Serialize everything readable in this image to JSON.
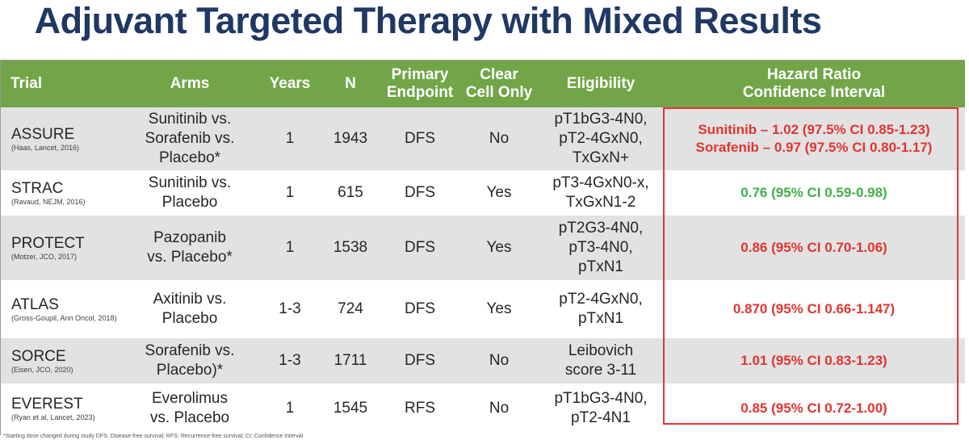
{
  "title": "Adjuvant Targeted Therapy with Mixed Results",
  "headers": {
    "trial": "Trial",
    "arms": "Arms",
    "years": "Years",
    "n": "N",
    "endpoint_1": "Primary",
    "endpoint_2": "Endpoint",
    "clear_1": "Clear",
    "clear_2": "Cell Only",
    "eligibility": "Eligibility",
    "hr_1": "Hazard Ratio",
    "hr_2": "Confidence Interval"
  },
  "rows": [
    {
      "trial": "ASSURE",
      "ref": "(Haas, Lancet, 2016)",
      "arms": [
        "Sunitinib vs.",
        "Sorafenib vs.",
        "Placebo*"
      ],
      "years": "1",
      "n": "1943",
      "endpoint": "DFS",
      "clear_cell": "No",
      "eligibility": [
        "pT1bG3-4N0,",
        "pT2-4GxN0,",
        "TxGxN+"
      ],
      "hr": [
        "Sunitinib – 1.02 (97.5% CI 0.85-1.23)",
        "Sorafenib – 0.97 (97.5% CI 0.80-1.17)"
      ],
      "hr_color": "#e03530"
    },
    {
      "trial": "STRAC",
      "ref": "(Ravaud, NEJM, 2016)",
      "arms": [
        "Sunitinib vs.",
        "Placebo"
      ],
      "years": "1",
      "n": "615",
      "endpoint": "DFS",
      "clear_cell": "Yes",
      "eligibility": [
        "pT3-4GxN0-x,",
        "TxGxN1-2"
      ],
      "hr": [
        "0.76 (95% CI 0.59-0.98)"
      ],
      "hr_color": "#3fb04a"
    },
    {
      "trial": "PROTECT",
      "ref": "(Motzer, JCO, 2017)",
      "arms": [
        "Pazopanib",
        "vs. Placebo*"
      ],
      "years": "1",
      "n": "1538",
      "endpoint": "DFS",
      "clear_cell": "Yes",
      "eligibility": [
        "pT2G3-4N0,",
        "pT3-4N0,",
        "pTxN1"
      ],
      "hr": [
        "0.86 (95% CI 0.70-1.06)"
      ],
      "hr_color": "#e03530"
    },
    {
      "trial": "ATLAS",
      "ref": "(Gross-Goupil, Ann Oncol, 2018)",
      "arms": [
        "Axitinib vs.",
        "Placebo"
      ],
      "years": "1-3",
      "n": "724",
      "endpoint": "DFS",
      "clear_cell": "Yes",
      "eligibility": [
        "pT2-4GxN0,",
        "pTxN1"
      ],
      "hr": [
        "0.870 (95% CI 0.66-1.147)"
      ],
      "hr_color": "#e03530"
    },
    {
      "trial": "SORCE",
      "ref": "(Eisen, JCO, 2020)",
      "arms": [
        "Sorafenib vs.",
        "Placebo)*"
      ],
      "years": "1-3",
      "n": "1711",
      "endpoint": "DFS",
      "clear_cell": "No",
      "eligibility": [
        "Leibovich",
        "score 3-11"
      ],
      "hr": [
        "1.01 (95% CI 0.83-1.23)"
      ],
      "hr_color": "#e03530"
    },
    {
      "trial": "EVEREST",
      "ref": "(Ryan et al, Lancet, 2023)",
      "arms": [
        "Everolimus",
        "vs. Placebo"
      ],
      "years": "1",
      "n": "1545",
      "endpoint": "RFS",
      "clear_cell": "No",
      "eligibility": [
        "pT1bG3-4N0,",
        "pT2-4N1"
      ],
      "hr": [
        "0.85 (95% CI 0.72-1.00)"
      ],
      "hr_color": "#e03530"
    }
  ],
  "colors": {
    "title": "#1f3864",
    "header_bg": "#72a548",
    "row_shade": "#e2e2e2",
    "negative": "#e03530",
    "positive": "#3fb04a",
    "highlight_box": "#e0343a"
  },
  "footnote": "*Starting dose changed during study DFS: Disease-free survival; RFS: Recurrence-free survival; CI: Confidence Interval"
}
